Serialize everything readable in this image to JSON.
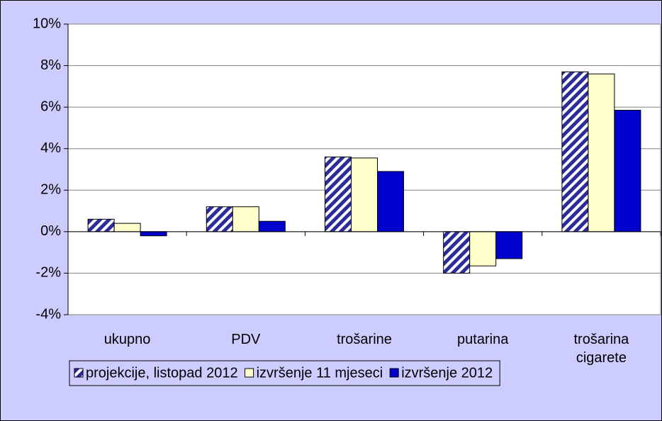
{
  "chart_data": {
    "type": "bar",
    "categories": [
      "ukupno",
      "PDV",
      "trošarine",
      "putarina",
      "trošarina cigarete"
    ],
    "series": [
      {
        "name": "projekcije, listopad 2012",
        "color": "#2b2b9a",
        "fill_pattern": "diagonal-stripes",
        "values": [
          0.6,
          1.2,
          3.6,
          -2.0,
          7.7
        ]
      },
      {
        "name": "izvršenje 11 mjeseci",
        "color": "#ffffcc",
        "values": [
          0.4,
          1.2,
          3.55,
          -1.65,
          7.6
        ]
      },
      {
        "name": "izvršenje 2012",
        "color": "#0000cc",
        "values": [
          -0.2,
          0.5,
          2.9,
          -1.3,
          5.85
        ]
      }
    ],
    "ylim": [
      -4,
      10
    ],
    "yticks": [
      {
        "value": -4,
        "label": "-4%"
      },
      {
        "value": -2,
        "label": "-2%"
      },
      {
        "value": 0,
        "label": "0%"
      },
      {
        "value": 2,
        "label": "2%"
      },
      {
        "value": 4,
        "label": "4%"
      },
      {
        "value": 6,
        "label": "6%"
      },
      {
        "value": 8,
        "label": "8%"
      },
      {
        "value": 10,
        "label": "10%"
      }
    ],
    "grid": true,
    "legend": "bottom"
  }
}
